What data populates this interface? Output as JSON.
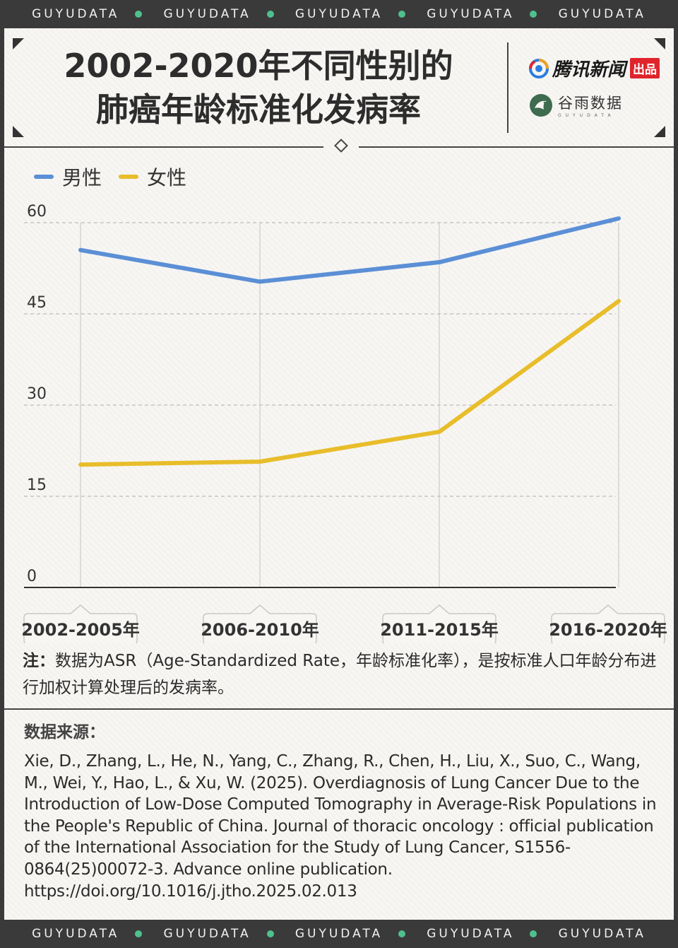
{
  "band": {
    "label": "GUYUDATA",
    "repeat": 5
  },
  "header": {
    "title_line1": "2002-2020年不同性别的",
    "title_line2": "肺癌年龄标准化发病率",
    "logo1_text": "腾讯新闻",
    "logo1_badge": "出品",
    "logo2_cn": "谷雨数据",
    "logo2_en": "GUYUDATA"
  },
  "colors": {
    "male": "#5b8fd6",
    "female": "#e8bd2a",
    "band": "#3a3a3a",
    "dot": "#4fc08d"
  },
  "chart_data": {
    "type": "line",
    "categories": [
      "2002-2005年",
      "2006-2010年",
      "2011-2015年",
      "2016-2020年"
    ],
    "series": [
      {
        "name": "男性",
        "values": [
          55.5,
          50.3,
          53.5,
          60.7
        ]
      },
      {
        "name": "女性",
        "values": [
          20.2,
          20.7,
          25.6,
          47.1
        ]
      }
    ],
    "y_ticks": [
      "0",
      "15",
      "30",
      "45",
      "60"
    ],
    "ylim": [
      0,
      60
    ],
    "grid": true,
    "legend_position": "top-left"
  },
  "note": {
    "lead": "注：",
    "text": "数据为ASR（Age-Standardized Rate，年龄标准化率），是按标准人口年龄分布进行加权计算处理后的发病率。"
  },
  "source": {
    "title": "数据来源：",
    "text": "Xie, D., Zhang, L., He, N., Yang, C., Zhang, R., Chen, H., Liu, X., Suo, C., Wang, M., Wei, Y., Hao, L., & Xu, W. (2025). Overdiagnosis of Lung Cancer Due to the Introduction of Low-Dose Computed Tomography in Average-Risk Populations in the People's Republic of China. Journal of thoracic oncology : official publication of the International Association for the Study of Lung Cancer, S1556-0864(25)00072-3. Advance online publication. https://doi.org/10.1016/j.jtho.2025.02.013"
  }
}
